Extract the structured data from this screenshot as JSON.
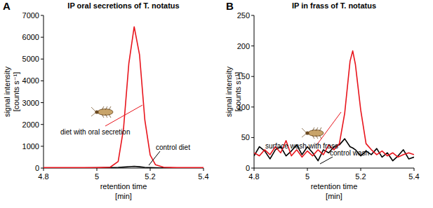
{
  "chart_data": [
    {
      "type": "line",
      "panel_label": "A",
      "title": "IP oral secretions of T. notatus",
      "ylabel": [
        "signal intensity",
        "[counts s⁻¹]"
      ],
      "xlabel": [
        "retention time",
        "[min]"
      ],
      "x": [
        4.8,
        4.85,
        4.9,
        4.95,
        5.0,
        5.05,
        5.08,
        5.1,
        5.12,
        5.14,
        5.16,
        5.18,
        5.2,
        5.22,
        5.25,
        5.3,
        5.35,
        5.4
      ],
      "series": [
        {
          "name": "diet with oral secretion",
          "color": "#e8141c",
          "values": [
            20,
            20,
            20,
            20,
            20,
            40,
            300,
            1800,
            4800,
            6480,
            5200,
            2200,
            600,
            150,
            40,
            20,
            20,
            20
          ]
        },
        {
          "name": "control diet",
          "color": "#000000",
          "values": [
            10,
            10,
            10,
            10,
            15,
            20,
            30,
            45,
            65,
            80,
            60,
            30,
            20,
            15,
            10,
            10,
            10,
            10
          ]
        }
      ],
      "xlim": [
        4.8,
        5.4
      ],
      "xticks": [
        4.8,
        5,
        5.2,
        5.4
      ],
      "ylim": [
        0,
        7000
      ],
      "yticks": [
        0,
        1000,
        2000,
        3000,
        4000,
        5000,
        6000,
        7000
      ]
    },
    {
      "type": "line",
      "panel_label": "B",
      "title": "IP in frass of T. notatus",
      "ylabel": [
        "signal intensity",
        "[counts s⁻¹]"
      ],
      "xlabel": [
        "retention time",
        "[min]"
      ],
      "x": [
        4.8,
        4.82,
        4.84,
        4.86,
        4.88,
        4.9,
        4.92,
        4.94,
        4.96,
        4.98,
        5.0,
        5.02,
        5.04,
        5.06,
        5.08,
        5.1,
        5.12,
        5.14,
        5.16,
        5.17,
        5.18,
        5.2,
        5.22,
        5.24,
        5.26,
        5.28,
        5.3,
        5.32,
        5.34,
        5.36,
        5.38,
        5.4
      ],
      "series": [
        {
          "name": "surface wash with frass",
          "color": "#e8141c",
          "values": [
            25,
            20,
            30,
            22,
            35,
            25,
            45,
            20,
            30,
            18,
            28,
            20,
            30,
            22,
            38,
            30,
            40,
            90,
            175,
            192,
            170,
            95,
            40,
            30,
            22,
            28,
            20,
            25,
            18,
            22,
            25,
            22
          ]
        },
        {
          "name": "control wash",
          "color": "#000000",
          "values": [
            20,
            35,
            28,
            15,
            30,
            35,
            20,
            28,
            38,
            22,
            35,
            25,
            12,
            30,
            25,
            35,
            38,
            48,
            35,
            33,
            30,
            20,
            28,
            22,
            32,
            18,
            25,
            12,
            20,
            30,
            15,
            18
          ]
        }
      ],
      "xlim": [
        4.8,
        5.4
      ],
      "xticks": [
        4.8,
        5,
        5.2,
        5.4
      ],
      "ylim": [
        0,
        250
      ],
      "yticks": [
        0,
        50,
        100,
        150,
        200,
        250
      ]
    }
  ]
}
